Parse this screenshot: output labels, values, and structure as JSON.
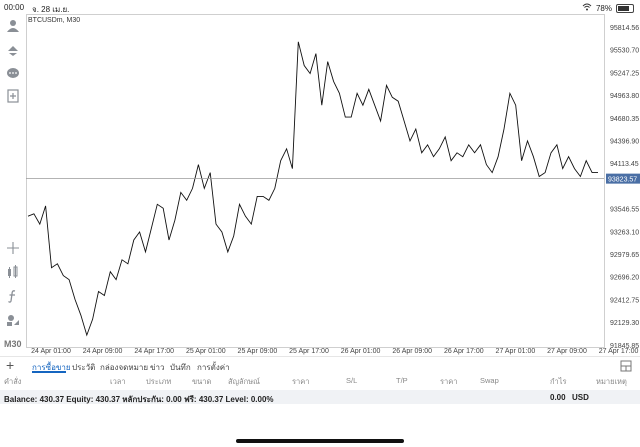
{
  "status_bar": {
    "time": "00:00",
    "date": "จ. 28 เม.ย.",
    "battery": "78%",
    "battery_level": 0.78
  },
  "chart": {
    "symbol_timeframe": "BTCUSDm, M30",
    "current_price": "93823.57"
  },
  "sidebar": {
    "timeframe": "M30"
  },
  "tabs": [
    "การซื้อขาย",
    "ประวัติ",
    "กล่องจดหมาย",
    "ข่าว",
    "บันทึก",
    "การตั้งค่า"
  ],
  "columns": {
    "symbol": "คำสั่ง",
    "time": "เวลา",
    "type": "ประเภท",
    "volume": "ขนาด",
    "price": "สัญลักษณ์",
    "open_price": "ราคา",
    "sl": "S/L",
    "tp": "T/P",
    "cur_price": "ราคา",
    "swap": "Swap",
    "profit": "กำไร",
    "comment": "หมายเหตุ"
  },
  "balance": {
    "text": "Balance: 430.37 Equity: 430.37 หลักประกัน: 0.00 ฟรี: 430.37 Level: 0.00%",
    "amount": "0.00",
    "currency": "USD"
  },
  "chart_data": {
    "type": "line",
    "title": "BTCUSDm, M30",
    "y_ticks": [
      "95814.56",
      "95530.70",
      "95247.25",
      "94963.80",
      "94680.35",
      "94396.90",
      "94113.45",
      "93546.55",
      "93263.10",
      "92979.65",
      "92696.20",
      "92412.75",
      "92129.30",
      "91845.85"
    ],
    "x_ticks": [
      "24 Apr 01:00",
      "24 Apr 09:00",
      "24 Apr 17:00",
      "25 Apr 01:00",
      "25 Apr 09:00",
      "25 Apr 17:00",
      "26 Apr 01:00",
      "26 Apr 09:00",
      "26 Apr 17:00",
      "27 Apr 01:00",
      "27 Apr 09:00",
      "27 Apr 17:00"
    ],
    "ylim": [
      91700,
      95900
    ],
    "current_price": 93823.57,
    "series": [
      {
        "values": [
          93350,
          93380,
          93250,
          93480,
          92700,
          92750,
          92600,
          92550,
          92300,
          92100,
          91850,
          92050,
          92400,
          92350,
          92650,
          92550,
          92800,
          92750,
          93050,
          93150,
          92900,
          93200,
          93500,
          93450,
          93050,
          93300,
          93650,
          93550,
          93700,
          94000,
          93700,
          93900,
          93250,
          93150,
          92900,
          93100,
          93500,
          93350,
          93250,
          93600,
          93600,
          93550,
          93700,
          94050,
          94200,
          93950,
          95550,
          95250,
          95150,
          95400,
          94750,
          95300,
          95050,
          94900,
          94600,
          94600,
          94900,
          94750,
          94950,
          94750,
          94550,
          95000,
          94850,
          94800,
          94550,
          94300,
          94450,
          94150,
          94250,
          94100,
          94200,
          94350,
          94050,
          94150,
          94100,
          94250,
          94150,
          94250,
          94000,
          93900,
          94100,
          94450,
          94900,
          94750,
          94050,
          94300,
          94100,
          93850,
          93900,
          94150,
          94250,
          93950,
          94100,
          93950,
          93850,
          94050,
          93900,
          93900
        ]
      }
    ]
  }
}
